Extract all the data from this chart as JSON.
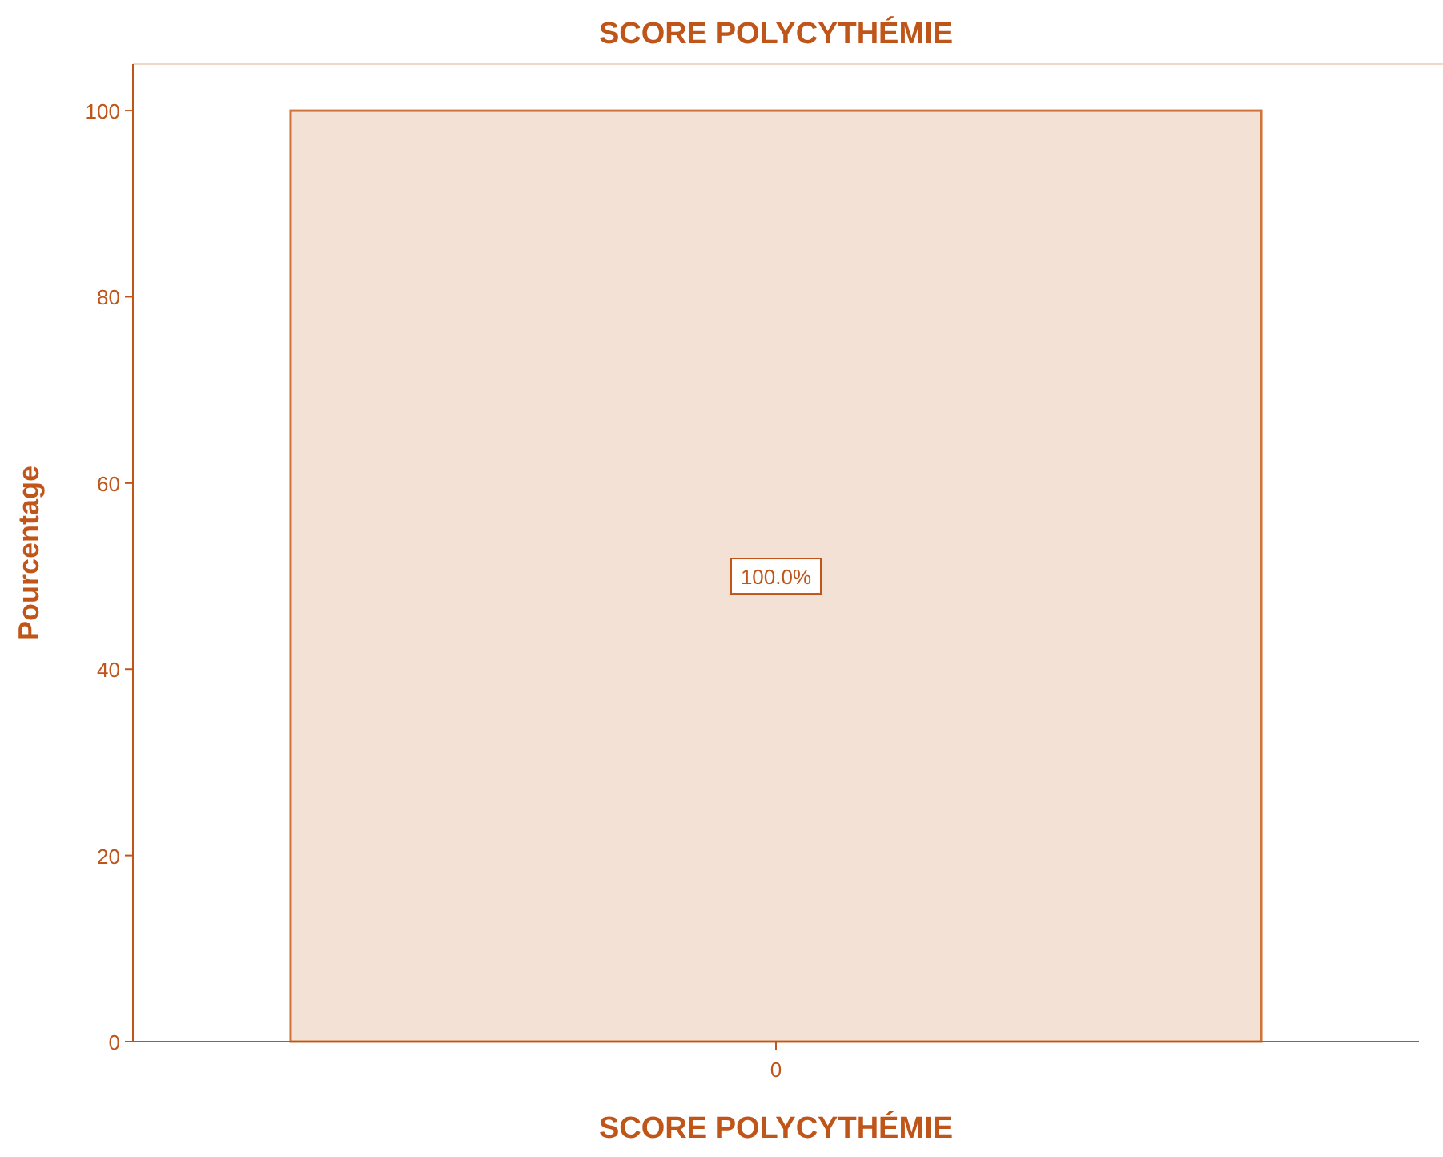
{
  "chart_data": {
    "type": "bar",
    "title": "SCORE POLYCYTHÉMIE",
    "xlabel": "SCORE POLYCYTHÉMIE",
    "ylabel": "Pourcentage",
    "categories": [
      "0"
    ],
    "values": [
      100
    ],
    "value_labels": [
      "100.0%"
    ],
    "color": "#f3e1d5",
    "ylim": [
      0,
      105
    ],
    "yticks": [
      0,
      20,
      40,
      60,
      80,
      100
    ],
    "grid": false
  }
}
